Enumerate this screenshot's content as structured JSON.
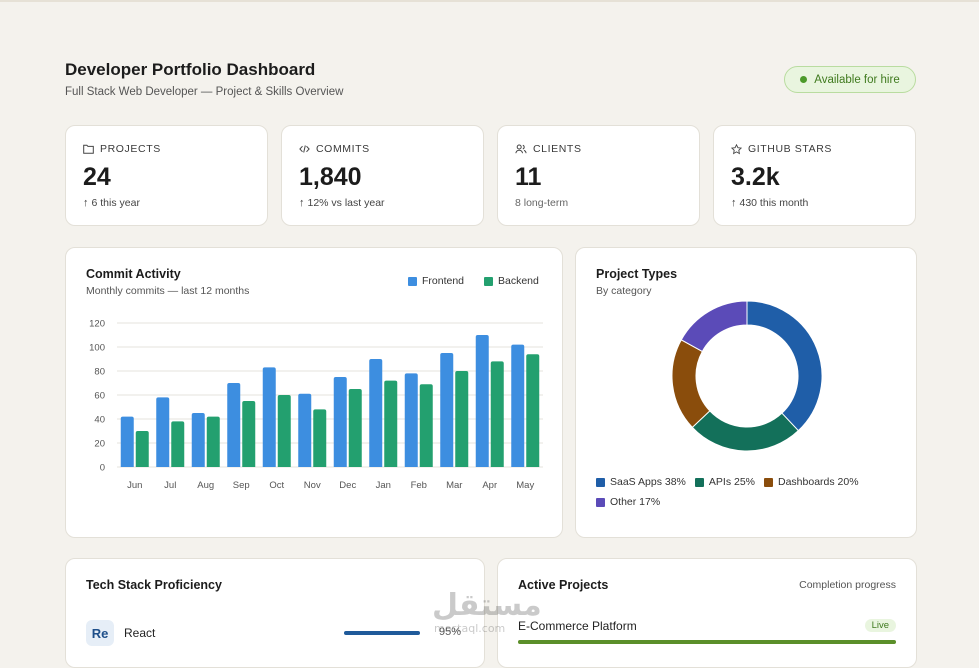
{
  "header": {
    "title": "Developer Portfolio Dashboard",
    "subtitle": "Full Stack Web Developer — Project & Skills Overview",
    "hire_badge": "Available for hire"
  },
  "stats": [
    {
      "label": "PROJECTS",
      "value": "24",
      "note": "6 this year",
      "icon": "folder-icon",
      "trend": "up"
    },
    {
      "label": "COMMITS",
      "value": "1,840",
      "note": "12% vs last year",
      "icon": "code-icon",
      "trend": "up"
    },
    {
      "label": "CLIENTS",
      "value": "11",
      "note": "8 long-term",
      "icon": "users-icon",
      "trend": "none"
    },
    {
      "label": "GITHUB STARS",
      "value": "3.2k",
      "note": "430 this month",
      "icon": "star-icon",
      "trend": "up"
    }
  ],
  "commit_panel": {
    "title": "Commit Activity",
    "subtitle": "Monthly commits — last 12 months"
  },
  "types_panel": {
    "title": "Project Types",
    "subtitle": "By category"
  },
  "tech_panel": {
    "title": "Tech Stack Proficiency",
    "items": [
      {
        "logo": "Re",
        "name": "React",
        "pct": "95%",
        "level": 0.95
      }
    ]
  },
  "active_panel": {
    "title": "Active Projects",
    "right_label": "Completion progress",
    "items": [
      {
        "name": "E-Commerce Platform",
        "badge": "Live",
        "progress": 1.0
      }
    ]
  },
  "watermark": {
    "arabic": "مستقل",
    "latin": "mostaql.com"
  },
  "colors": {
    "frontend": "#3d8ee0",
    "backend": "#23a06f",
    "accent_green": "#4c9a2a",
    "saas": "#1f5ea8",
    "apis": "#13705a",
    "dashboards": "#8a4d0c",
    "other": "#5b4bb8"
  },
  "chart_data": [
    {
      "type": "bar",
      "title": "Commit Activity",
      "subtitle": "Monthly commits — last 12 months",
      "categories": [
        "Jun",
        "Jul",
        "Aug",
        "Sep",
        "Oct",
        "Nov",
        "Dec",
        "Jan",
        "Feb",
        "Mar",
        "Apr",
        "May"
      ],
      "series": [
        {
          "name": "Frontend",
          "color": "#3d8ee0",
          "values": [
            42,
            58,
            45,
            70,
            83,
            61,
            75,
            90,
            78,
            95,
            110,
            102
          ]
        },
        {
          "name": "Backend",
          "color": "#23a06f",
          "values": [
            30,
            38,
            42,
            55,
            60,
            48,
            65,
            72,
            69,
            80,
            88,
            94
          ]
        }
      ],
      "yticks": [
        "0",
        "20",
        "40",
        "60",
        "80",
        "100",
        "120"
      ],
      "ylim": [
        0,
        120
      ],
      "grid": true,
      "legend": "top-right"
    },
    {
      "type": "pie",
      "title": "Project Types",
      "subtitle": "By category",
      "donut": true,
      "slices": [
        {
          "label": "SaaS Apps 38%",
          "value": 38,
          "color": "#1f5ea8"
        },
        {
          "label": "APIs 25%",
          "value": 25,
          "color": "#13705a"
        },
        {
          "label": "Dashboards 20%",
          "value": 20,
          "color": "#8a4d0c"
        },
        {
          "label": "Other 17%",
          "value": 17,
          "color": "#5b4bb8"
        }
      ],
      "legend": "bottom"
    }
  ]
}
